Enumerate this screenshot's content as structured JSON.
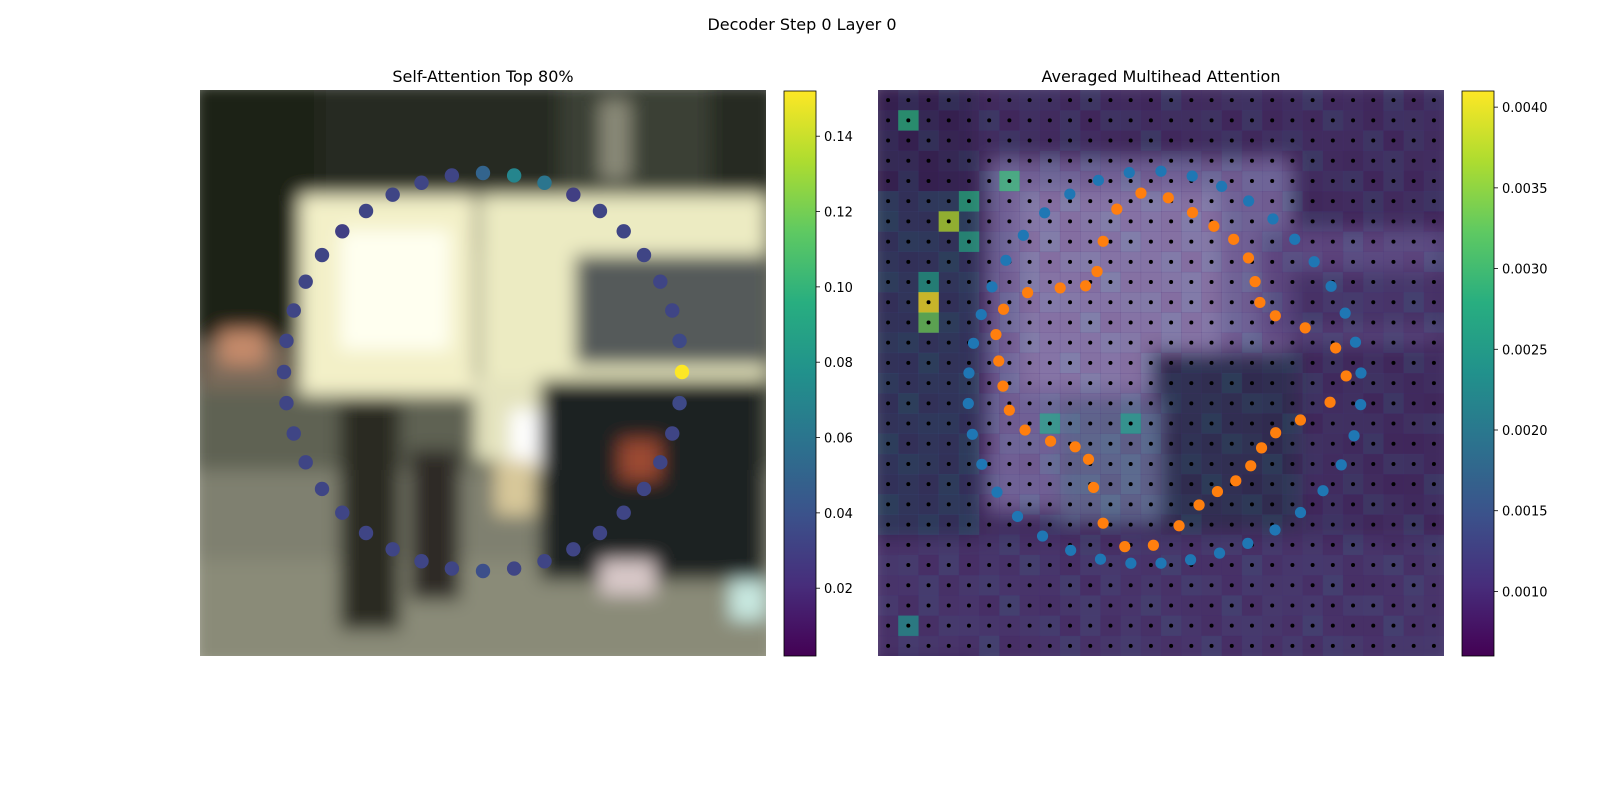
{
  "figure": {
    "suptitle": "Decoder Step 0 Layer 0"
  },
  "chart_data": [
    {
      "type": "scatter",
      "title": "Self-Attention Top 80%",
      "xlabel": "",
      "ylabel": "",
      "background": "blurred street scene photo (white van, car, pedestrian)",
      "grid": false,
      "colormap": "viridis",
      "colorbar": {
        "range": [
          0.002,
          0.152
        ],
        "ticks": [
          0.02,
          0.04,
          0.06,
          0.08,
          0.1,
          0.12,
          0.14
        ],
        "tick_labels": [
          "0.02",
          "0.04",
          "0.06",
          "0.08",
          "0.10",
          "0.12",
          "0.14"
        ]
      },
      "series": [
        {
          "n_points": 40,
          "points_start": "rightmost point, clockwise",
          "values": [
            0.152,
            0.035,
            0.033,
            0.033,
            0.033,
            0.033,
            0.033,
            0.033,
            0.033,
            0.033,
            0.038,
            0.033,
            0.033,
            0.033,
            0.033,
            0.033,
            0.033,
            0.033,
            0.033,
            0.033,
            0.033,
            0.033,
            0.033,
            0.033,
            0.033,
            0.03,
            0.033,
            0.033,
            0.033,
            0.033,
            0.05,
            0.07,
            0.06,
            0.03,
            0.033,
            0.033,
            0.033,
            0.033,
            0.033,
            0.035
          ]
        }
      ]
    },
    {
      "type": "heatmap",
      "title": "Averaged Multihead Attention",
      "xlabel": "",
      "ylabel": "",
      "grid_size": [
        28,
        28
      ],
      "colormap": "viridis",
      "colorbar": {
        "range": [
          0.0006,
          0.0041
        ],
        "ticks": [
          0.001,
          0.0015,
          0.002,
          0.0025,
          0.003,
          0.0035,
          0.004
        ],
        "tick_labels": [
          "0.0010",
          "0.0015",
          "0.0020",
          "0.0025",
          "0.0030",
          "0.0035",
          "0.0040"
        ]
      },
      "hot_cells": [
        {
          "col": 2,
          "row": 10,
          "value": 0.0041
        },
        {
          "col": 3,
          "row": 6,
          "value": 0.0037
        },
        {
          "col": 2,
          "row": 11,
          "value": 0.0033
        },
        {
          "col": 6,
          "row": 4,
          "value": 0.0029
        },
        {
          "col": 1,
          "row": 1,
          "value": 0.0028
        },
        {
          "col": 4,
          "row": 5,
          "value": 0.0027
        },
        {
          "col": 4,
          "row": 7,
          "value": 0.0026
        },
        {
          "col": 2,
          "row": 9,
          "value": 0.0025
        },
        {
          "col": 8,
          "row": 16,
          "value": 0.0025
        },
        {
          "col": 12,
          "row": 16,
          "value": 0.0024
        },
        {
          "col": 1,
          "row": 26,
          "value": 0.0023
        }
      ],
      "series": [
        {
          "name": "reference points",
          "color": "#1f77b4",
          "n_points": 40
        },
        {
          "name": "sampling points",
          "color": "#ff7f0e",
          "n_points": 40
        },
        {
          "name": "grid points",
          "color": "#000000",
          "n_points": 784
        }
      ]
    }
  ]
}
